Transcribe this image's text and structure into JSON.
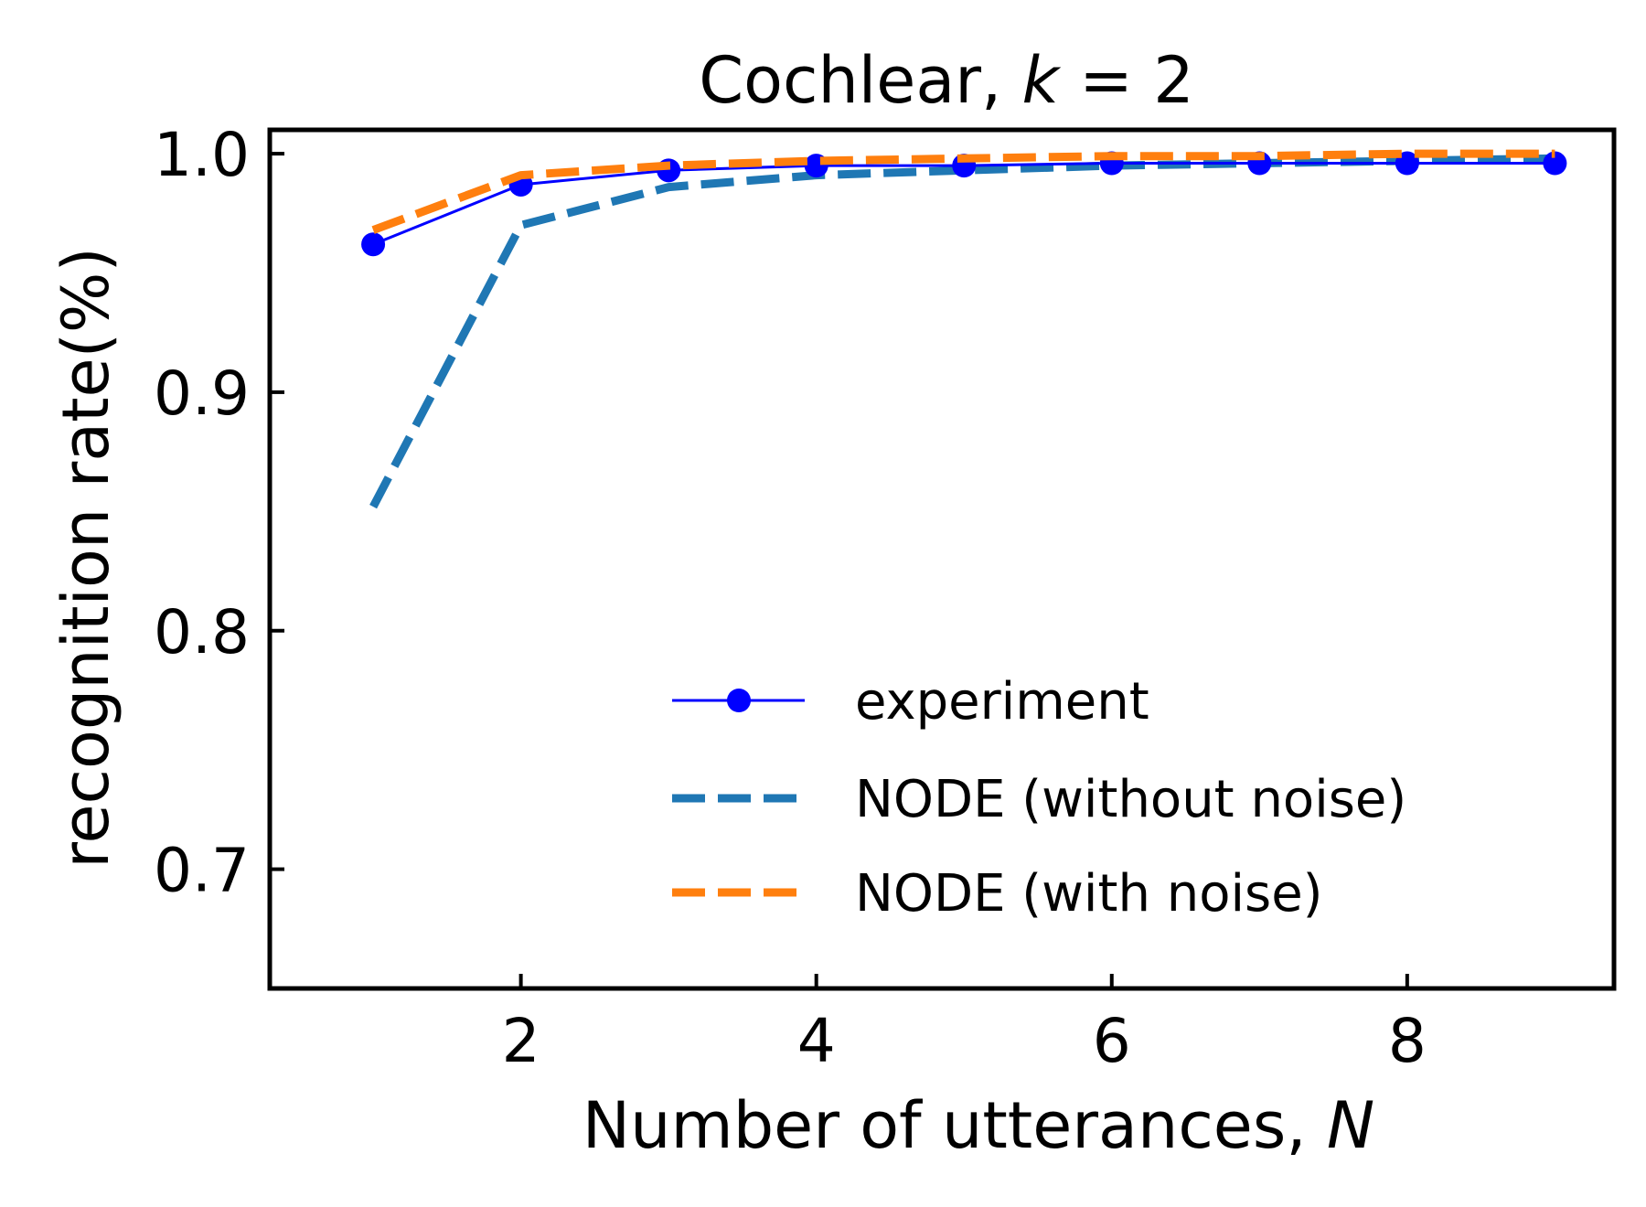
{
  "chart_data": {
    "type": "line",
    "title_main": "Cochlear, ",
    "title_var": "k",
    "title_rest": " = 2",
    "xlabel_main": "Number of utterances, ",
    "xlabel_var": "N",
    "ylabel": "recognition rate(%)",
    "xlim": [
      0.3,
      9.4
    ],
    "ylim": [
      0.65,
      1.01
    ],
    "x_ticks": [
      2,
      4,
      6,
      8
    ],
    "x_tick_labels": [
      "2",
      "4",
      "6",
      "8"
    ],
    "y_ticks": [
      0.7,
      0.8,
      0.9,
      1.0
    ],
    "y_tick_labels": [
      "0.7",
      "0.8",
      "0.9",
      "1.0"
    ],
    "legend_position": "lower-right",
    "series": [
      {
        "name": "experiment",
        "color": "#0000ff",
        "style": "solid-marker",
        "x": [
          1,
          2,
          3,
          4,
          5,
          6,
          7,
          8,
          9
        ],
        "y": [
          0.962,
          0.987,
          0.993,
          0.995,
          0.995,
          0.996,
          0.996,
          0.996,
          0.996
        ]
      },
      {
        "name": "NODE (without noise)",
        "color": "#1f77b4",
        "style": "dashed",
        "x": [
          1,
          2,
          3,
          4,
          5,
          6,
          7,
          8,
          9
        ],
        "y": [
          0.852,
          0.97,
          0.986,
          0.991,
          0.993,
          0.995,
          0.996,
          0.997,
          0.998
        ]
      },
      {
        "name": "NODE (with noise)",
        "color": "#ff7f0e",
        "style": "dashed",
        "x": [
          1,
          2,
          3,
          4,
          5,
          6,
          7,
          8,
          9
        ],
        "y": [
          0.968,
          0.991,
          0.995,
          0.997,
          0.998,
          0.999,
          0.999,
          1.0,
          1.0
        ]
      }
    ]
  }
}
